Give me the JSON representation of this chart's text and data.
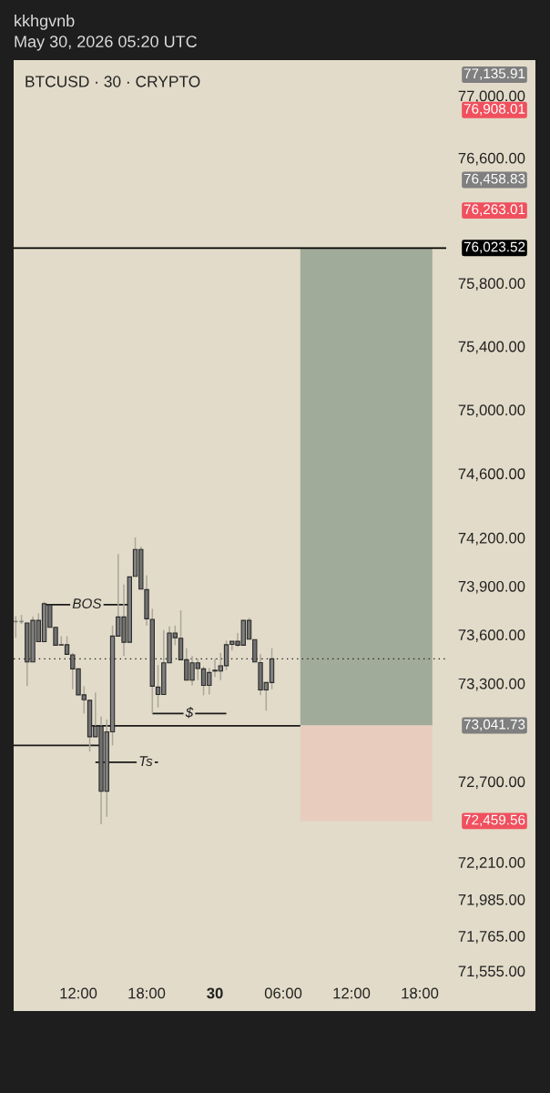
{
  "chart_data": {
    "type": "candlestick",
    "title": "BTCUSD · 30 · CRYPTO",
    "subtitle": "kkhgvnb\nMay 30, 2026 05:20 UTC",
    "log": true,
    "x": [
      "2026-05-29T06:30",
      "2026-05-29T07:00",
      "2026-05-29T07:30",
      "2026-05-29T08:00",
      "2026-05-29T08:30",
      "2026-05-29T09:00",
      "2026-05-29T09:30",
      "2026-05-29T10:00",
      "2026-05-29T10:30",
      "2026-05-29T11:00",
      "2026-05-29T11:30",
      "2026-05-29T12:00",
      "2026-05-29T12:30",
      "2026-05-29T13:00",
      "2026-05-29T13:30",
      "2026-05-29T14:00",
      "2026-05-29T14:30",
      "2026-05-29T15:00",
      "2026-05-29T15:30",
      "2026-05-29T16:00",
      "2026-05-29T16:30",
      "2026-05-29T17:00",
      "2026-05-29T17:30",
      "2026-05-29T18:00",
      "2026-05-29T18:30",
      "2026-05-29T19:00",
      "2026-05-29T19:30",
      "2026-05-29T20:00",
      "2026-05-29T20:30",
      "2026-05-29T21:00",
      "2026-05-29T21:30",
      "2026-05-29T22:00",
      "2026-05-29T22:30",
      "2026-05-29T23:00",
      "2026-05-29T23:30",
      "2026-05-30T00:00",
      "2026-05-30T00:30",
      "2026-05-30T01:00",
      "2026-05-30T01:30",
      "2026-05-30T02:00",
      "2026-05-30T02:30",
      "2026-05-30T03:00",
      "2026-05-30T03:30",
      "2026-05-30T04:00",
      "2026-05-30T04:30",
      "2026-05-30T05:00"
    ],
    "ohlc": [
      [
        73681,
        73715,
        73581,
        73681
      ],
      [
        73681,
        73722,
        73666,
        73681
      ],
      [
        73672,
        73675,
        73283,
        73432
      ],
      [
        73432,
        73712,
        73432,
        73688
      ],
      [
        73688,
        73732,
        73557,
        73557
      ],
      [
        73557,
        73803,
        73557,
        73791
      ],
      [
        73784,
        73784,
        73645,
        73645
      ],
      [
        73645,
        73645,
        73535,
        73535
      ],
      [
        73538,
        73590,
        73535,
        73536
      ],
      [
        73538,
        73590,
        73479,
        73479
      ],
      [
        73475,
        73488,
        73264,
        73389
      ],
      [
        73389,
        73389,
        73230,
        73230
      ],
      [
        73230,
        73283,
        73115,
        73200
      ],
      [
        73196,
        73196,
        72882,
        72973
      ],
      [
        72973,
        73245,
        72973,
        73037
      ],
      [
        73037,
        73096,
        72439,
        72640
      ],
      [
        72640,
        73078,
        72485,
        73003
      ],
      [
        73003,
        73656,
        72920,
        73591
      ],
      [
        73591,
        74099,
        73591,
        73709
      ],
      [
        73709,
        73910,
        73469,
        73553
      ],
      [
        73553,
        73957,
        73553,
        73957
      ],
      [
        73961,
        74202,
        73961,
        74127
      ],
      [
        74127,
        74146,
        73882,
        73882
      ],
      [
        73878,
        73966,
        73656,
        73698
      ],
      [
        73694,
        73760,
        73115,
        73283
      ],
      [
        73277,
        73413,
        73152,
        73232
      ],
      [
        73232,
        73628,
        73232,
        73426
      ],
      [
        73426,
        73651,
        73426,
        73610
      ],
      [
        73610,
        73656,
        73535,
        73581
      ],
      [
        73578,
        73750,
        73445,
        73445
      ],
      [
        73445,
        73516,
        73320,
        73320
      ],
      [
        73320,
        73469,
        73288,
        73426
      ],
      [
        73426,
        73451,
        73320,
        73391
      ],
      [
        73389,
        73404,
        73227,
        73288
      ],
      [
        73288,
        73395,
        73232,
        73367
      ],
      [
        73381,
        73451,
        73339,
        73376
      ],
      [
        73376,
        73488,
        73320,
        73408
      ],
      [
        73409,
        73563,
        73381,
        73538
      ],
      [
        73540,
        73559,
        73503,
        73559
      ],
      [
        73559,
        73610,
        73525,
        73535
      ],
      [
        73535,
        73688,
        73535,
        73688
      ],
      [
        73688,
        73704,
        73572,
        73572
      ],
      [
        73569,
        73569,
        73432,
        73432
      ],
      [
        73428,
        73479,
        73227,
        73260
      ],
      [
        73260,
        73305,
        73133,
        73305
      ],
      [
        73305,
        73516,
        73264,
        73451
      ]
    ],
    "colors": [
      "#808080",
      "#808080",
      "#727272",
      "#808080",
      "#727272",
      "#808080",
      "#727272",
      "#727272",
      "#727272",
      "#727272",
      "#727272",
      "#727272",
      "#727272",
      "#727272",
      "#808080",
      "#727272",
      "#808080",
      "#808080",
      "#808080",
      "#727272",
      "#808080",
      "#808080",
      "#727272",
      "#727272",
      "#727272",
      "#727272",
      "#808080",
      "#808080",
      "#727272",
      "#727272",
      "#727272",
      "#808080",
      "#727272",
      "#727272",
      "#808080",
      "#727272",
      "#808080",
      "#808080",
      "#808080",
      "#727272",
      "#808080",
      "#727272",
      "#727272",
      "#727272",
      "#808080",
      "#808080"
    ],
    "series": [
      {
        "type": "bar",
        "x": [
          "2026-05-30T13:18"
        ],
        "base": [
          73041.73
        ],
        "values": [
          2981.79
        ],
        "color": "#a0ab99"
      },
      {
        "type": "bar",
        "x": [
          "2026-05-30T13:18"
        ],
        "base": [
          72459.56
        ],
        "values": [
          582.17
        ],
        "color": "#e8cdbf"
      },
      {
        "type": "line",
        "x": [
          "2026-05-29T09:00",
          "2026-05-29T16:30"
        ],
        "values": [
          73785,
          73785
        ],
        "color": "#1a1a1a"
      },
      {
        "type": "line",
        "x": [
          "2026-05-29T18:30",
          "2026-05-30T01:00"
        ],
        "values": [
          73115,
          73115
        ],
        "color": "#1a1a1a"
      },
      {
        "type": "line",
        "x": [
          "2026-05-29T13:30",
          "2026-05-29T19:00"
        ],
        "values": [
          72817,
          72817
        ],
        "color": "#1a1a1a"
      },
      {
        "type": "line",
        "x": [
          "2026-05-29T06:19",
          "2026-05-29T14:00"
        ],
        "values": [
          72920,
          72920
        ],
        "color": "#1a1a1a"
      },
      {
        "type": "line",
        "x": [
          "2026-05-29T13:00",
          "2026-05-30T07:30"
        ],
        "values": [
          73040,
          73040
        ],
        "color": "#1a1a1a"
      }
    ],
    "ref_lines": [
      {
        "axis": "y",
        "value": 76023.52,
        "label": "76,023.52",
        "color": "#000000",
        "line_style": "solid"
      },
      {
        "axis": "y",
        "value": 73451,
        "color": "#222222",
        "line_style": "dotted"
      }
    ],
    "annotations": [
      {
        "text": "BOS",
        "x": "2026-05-29T12:45",
        "y": 73785
      },
      {
        "text": "$",
        "x": "2026-05-29T21:45",
        "y": 73115
      },
      {
        "text": "Ts",
        "x": "2026-05-29T17:55",
        "y": 72817
      },
      "77,135.91",
      "76,908.01",
      "76,458.83",
      "76,263.01",
      "73,041.73",
      "72,459.56"
    ],
    "xlim": [
      "2026-05-29T06:19",
      "2026-05-30T20:19"
    ],
    "xticks": [
      {
        "value": "2026-05-29T12:00",
        "label": "12:00"
      },
      {
        "value": "2026-05-29T18:00",
        "label": "18:00"
      },
      {
        "value": "2026-05-30T00:00",
        "label": "30"
      },
      {
        "value": "2026-05-30T06:00",
        "label": "06:00"
      },
      {
        "value": "2026-05-30T12:00",
        "label": "12:00"
      },
      {
        "value": "2026-05-30T18:00",
        "label": "18:00"
      }
    ],
    "ylim": [
      71555,
      77230
    ],
    "yticks": [
      {
        "value": 77000,
        "label": "77,000.00"
      },
      {
        "value": 76600,
        "label": "76,600.00"
      },
      {
        "value": 75800,
        "label": "75,800.00"
      },
      {
        "value": 75400,
        "label": "75,400.00"
      },
      {
        "value": 75000,
        "label": "75,000.00"
      },
      {
        "value": 74600,
        "label": "74,600.00"
      },
      {
        "value": 74200,
        "label": "74,200.00"
      },
      {
        "value": 73900,
        "label": "73,900.00"
      },
      {
        "value": 73600,
        "label": "73,600.00"
      },
      {
        "value": 73300,
        "label": "73,300.00"
      },
      {
        "value": 72700,
        "label": "72,700.00"
      },
      {
        "value": 72210,
        "label": "72,210.00"
      },
      {
        "value": 71985,
        "label": "71,985.00"
      },
      {
        "value": 71765,
        "label": "71,765.00"
      },
      {
        "value": 71555,
        "label": "71,555.00"
      }
    ]
  }
}
